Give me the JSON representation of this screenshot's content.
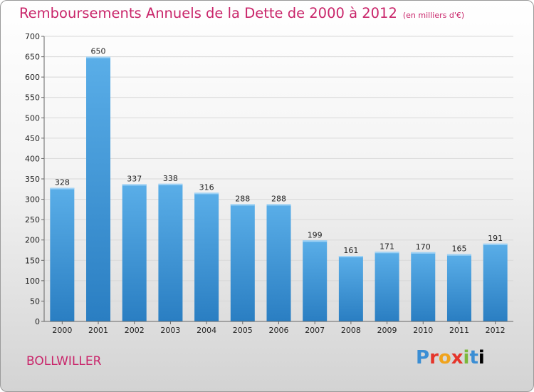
{
  "header": {
    "title": "Remboursements Annuels de la Dette de 2000 à 2012",
    "subtitle": "(en milliers d'€)"
  },
  "footer": {
    "commune": "BOLLWILLER",
    "logo": "Proxiti"
  },
  "colors": {
    "title": "#c9256a",
    "bar_light": "#5aaee8",
    "bar_dark": "#2a7ec2"
  },
  "chart_data": {
    "type": "bar",
    "title": "Remboursements Annuels de la Dette de 2000 à 2012",
    "subtitle": "(en milliers d'€)",
    "categories": [
      "2000",
      "2001",
      "2002",
      "2003",
      "2004",
      "2005",
      "2006",
      "2007",
      "2008",
      "2009",
      "2010",
      "2011",
      "2012"
    ],
    "values": [
      328,
      650,
      337,
      338,
      316,
      288,
      288,
      199,
      161,
      171,
      170,
      165,
      191
    ],
    "ylim": [
      0,
      700
    ],
    "yticks": [
      0,
      50,
      100,
      150,
      200,
      250,
      300,
      350,
      400,
      450,
      500,
      550,
      600,
      650,
      700
    ],
    "grid": true,
    "data_labels": true
  }
}
